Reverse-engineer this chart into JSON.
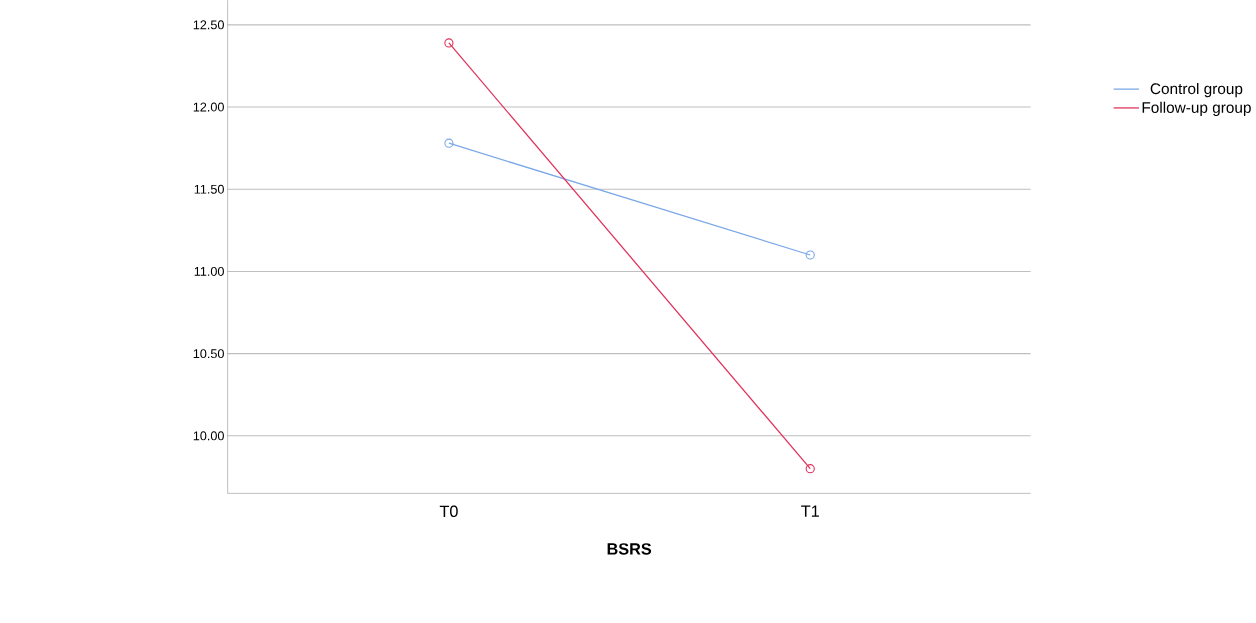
{
  "chart_data": {
    "type": "line",
    "xlabel": "BSRS",
    "categories": [
      "T0",
      "T1"
    ],
    "series": [
      {
        "name": "Control group",
        "color": "#7aa7e8",
        "values": [
          11.78,
          11.1
        ]
      },
      {
        "name": "Follow-up group",
        "color": "#e0305a",
        "values": [
          12.39,
          9.8
        ]
      }
    ],
    "ylim": [
      9.65,
      12.65
    ],
    "yticks": [
      {
        "value": 10,
        "label": "10.00"
      },
      {
        "value": 10.5,
        "label": "10.50"
      },
      {
        "value": 11,
        "label": "11.00"
      },
      {
        "value": 11.5,
        "label": "11.50"
      },
      {
        "value": 12,
        "label": "12.00"
      },
      {
        "value": 12.5,
        "label": "12.50"
      }
    ],
    "grid": "y",
    "legend": "top right",
    "marker": "circle",
    "line_style": "solid"
  }
}
